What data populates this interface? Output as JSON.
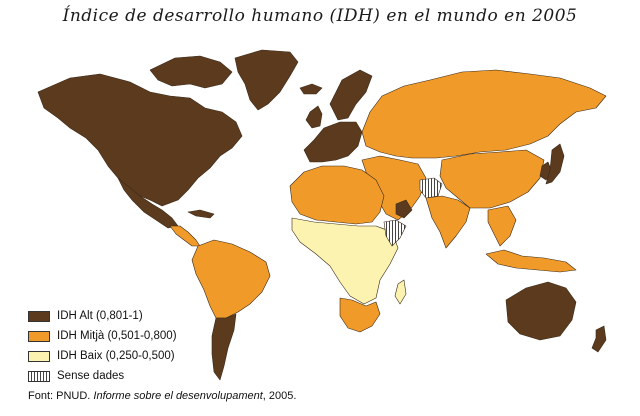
{
  "title": "Índice de desarrollo humano (IDH) en el mundo en 2005",
  "colors": {
    "high": "#5c3a1e",
    "medium": "#f09a2a",
    "low": "#fdf3b0",
    "nodata": "#ffffff",
    "border": "#3a2a18",
    "ocean": "#ffffff"
  },
  "legend": [
    {
      "key": "high",
      "label": "IDH Alt (0,801-1)"
    },
    {
      "key": "medium",
      "label": "IDH Mitjà (0,501-0,800)"
    },
    {
      "key": "low",
      "label": "IDH Baix (0,250-0,500)"
    },
    {
      "key": "nodata",
      "label": "Sense dades"
    }
  ],
  "source": {
    "prefix": "Font: PNUD. ",
    "work": "Informe sobre el desenvolupament",
    "suffix": ", 2005."
  },
  "regions": [
    {
      "name": "greenland",
      "category": "high"
    },
    {
      "name": "north-america",
      "category": "high"
    },
    {
      "name": "mexico",
      "category": "high"
    },
    {
      "name": "central-america",
      "category": "medium"
    },
    {
      "name": "cuba",
      "category": "high"
    },
    {
      "name": "south-america-north",
      "category": "medium"
    },
    {
      "name": "south-america-south",
      "category": "high"
    },
    {
      "name": "iceland",
      "category": "high"
    },
    {
      "name": "western-europe",
      "category": "high"
    },
    {
      "name": "scandinavia",
      "category": "high"
    },
    {
      "name": "uk",
      "category": "high"
    },
    {
      "name": "russia",
      "category": "medium"
    },
    {
      "name": "north-africa",
      "category": "medium"
    },
    {
      "name": "sub-saharan-africa",
      "category": "low"
    },
    {
      "name": "southern-africa",
      "category": "medium"
    },
    {
      "name": "madagascar",
      "category": "low"
    },
    {
      "name": "horn-of-africa",
      "category": "nodata"
    },
    {
      "name": "middle-east",
      "category": "medium"
    },
    {
      "name": "arabian-gulf",
      "category": "high"
    },
    {
      "name": "south-asia",
      "category": "medium"
    },
    {
      "name": "china",
      "category": "medium"
    },
    {
      "name": "japan",
      "category": "high"
    },
    {
      "name": "korea",
      "category": "high"
    },
    {
      "name": "southeast-asia",
      "category": "medium"
    },
    {
      "name": "indonesia",
      "category": "medium"
    },
    {
      "name": "australia",
      "category": "high"
    },
    {
      "name": "new-zealand",
      "category": "high"
    },
    {
      "name": "afghanistan",
      "category": "nodata"
    }
  ]
}
